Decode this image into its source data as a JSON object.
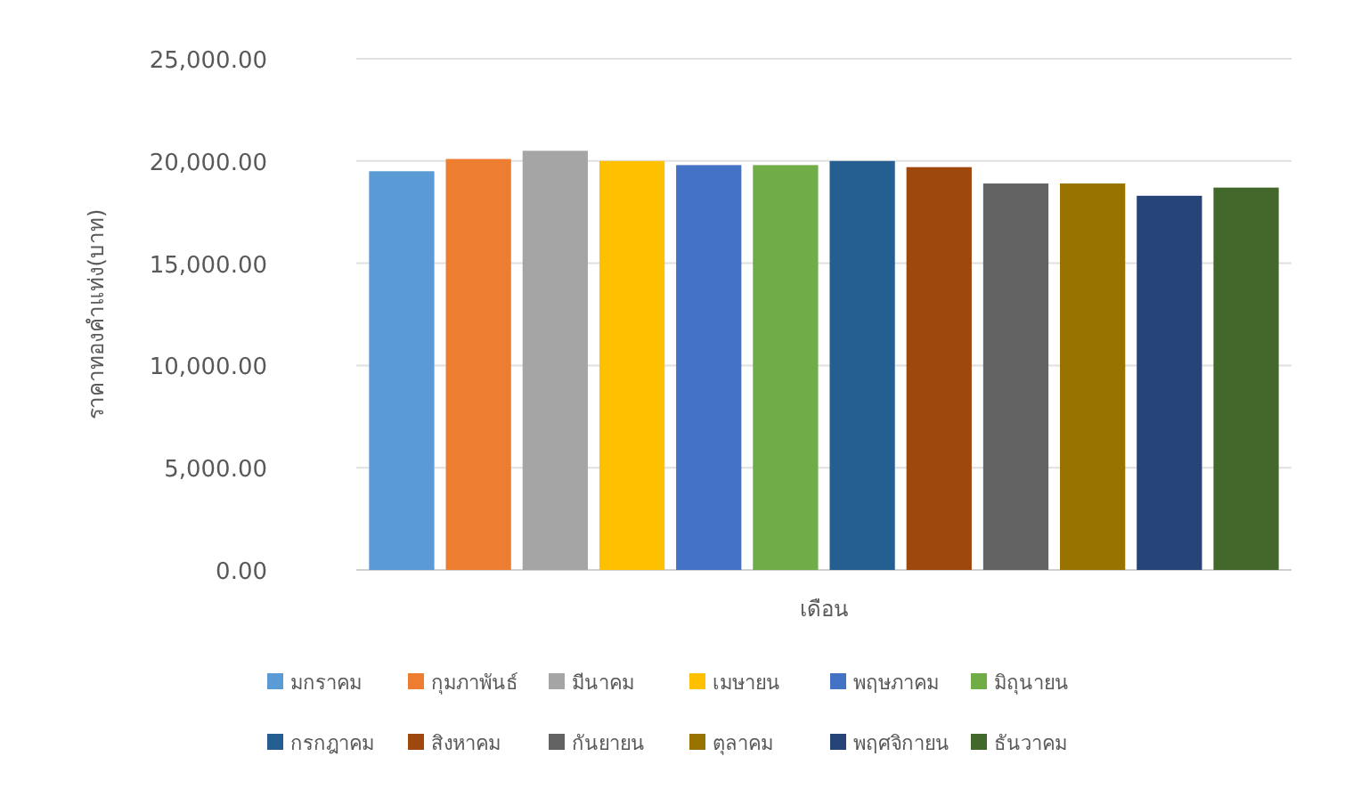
{
  "chart_data": {
    "type": "bar",
    "xlabel": "เดือน",
    "ylabel": "ราคาทองคำแท่ง(บาท)",
    "categories": [
      null
    ],
    "series": [
      {
        "name": "มกราคม",
        "color": "#5b9bd5",
        "values": [
          19500
        ]
      },
      {
        "name": "กุมภาพันธ์",
        "color": "#ed7d31",
        "values": [
          20100
        ]
      },
      {
        "name": "มีนาคม",
        "color": "#a5a5a5",
        "values": [
          20500
        ]
      },
      {
        "name": "เมษายน",
        "color": "#ffc000",
        "values": [
          20000
        ]
      },
      {
        "name": "พฤษภาคม",
        "color": "#4472c4",
        "values": [
          19800
        ]
      },
      {
        "name": "มิถุนายน",
        "color": "#70ad47",
        "values": [
          19800
        ]
      },
      {
        "name": "กรกฎาคม",
        "color": "#255e91",
        "values": [
          20000
        ]
      },
      {
        "name": "สิงหาคม",
        "color": "#9e480e",
        "values": [
          19700
        ]
      },
      {
        "name": "กันยายน",
        "color": "#636363",
        "values": [
          18900
        ]
      },
      {
        "name": "ตุลาคม",
        "color": "#997300",
        "values": [
          18900
        ]
      },
      {
        "name": "พฤศจิกายน",
        "color": "#264478",
        "values": [
          18300
        ]
      },
      {
        "name": "ธันวาคม",
        "color": "#43682b",
        "values": [
          18700
        ]
      }
    ],
    "ylim": [
      0,
      25000
    ],
    "yticks": [
      {
        "value": 0,
        "label": "0.00"
      },
      {
        "value": 5000,
        "label": "5,000.00"
      },
      {
        "value": 10000,
        "label": "10,000.00"
      },
      {
        "value": 15000,
        "label": "15,000.00"
      },
      {
        "value": 20000,
        "label": "20,000.00"
      },
      {
        "value": 25000,
        "label": "25,000.00"
      }
    ],
    "grid": "y",
    "legend": "bottom"
  }
}
